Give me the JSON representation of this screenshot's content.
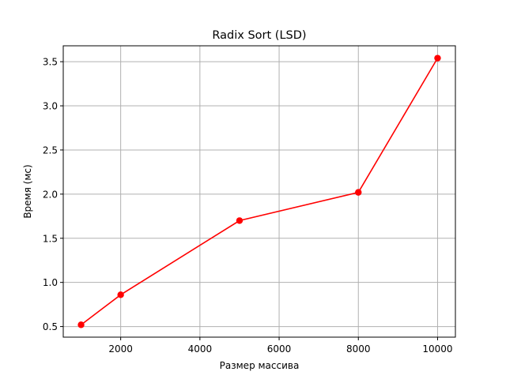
{
  "chart_data": {
    "type": "line",
    "title": "Radix Sort (LSD)",
    "xlabel": "Размер массива",
    "ylabel": "Время (мс)",
    "x": [
      1000,
      2000,
      5000,
      8000,
      10000
    ],
    "series": [
      {
        "name": "Radix Sort (LSD)",
        "values": [
          0.52,
          0.86,
          1.7,
          2.02,
          3.54
        ],
        "color": "#ff0000",
        "marker": "circle"
      }
    ],
    "xlim": [
      550,
      10450
    ],
    "ylim": [
      0.38,
      3.68
    ],
    "xticks": [
      2000,
      4000,
      6000,
      8000,
      10000
    ],
    "xtick_labels": [
      "2000",
      "4000",
      "6000",
      "8000",
      "10000"
    ],
    "yticks": [
      0.5,
      1.0,
      1.5,
      2.0,
      2.5,
      3.0,
      3.5
    ],
    "ytick_labels": [
      "0.5",
      "1.0",
      "1.5",
      "2.0",
      "2.5",
      "3.0",
      "3.5"
    ],
    "grid": true
  }
}
